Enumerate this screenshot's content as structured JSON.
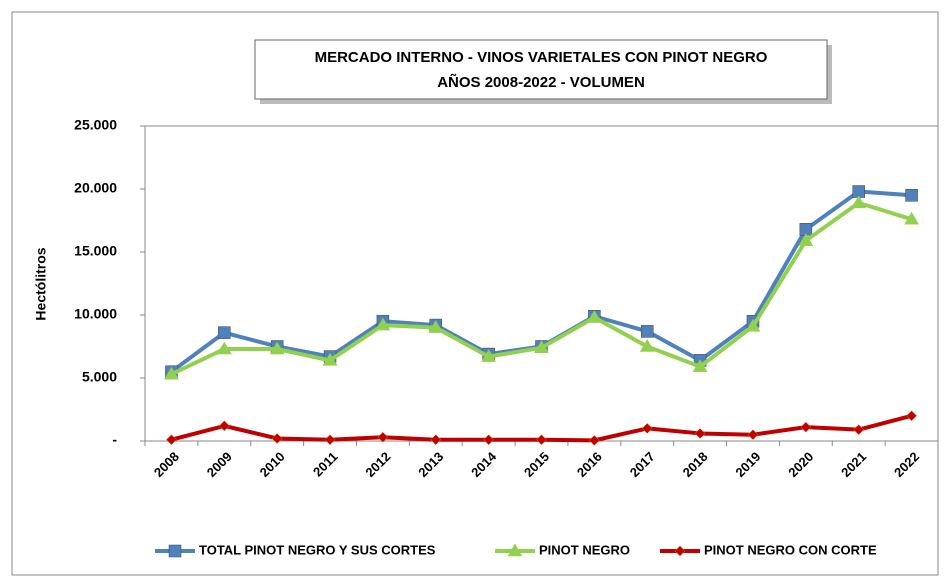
{
  "chart_data": {
    "type": "line",
    "title": "MERCADO INTERNO - VINOS VARIETALES CON PINOT NEGRO",
    "subtitle": "AÑOS 2008-2022 - VOLUMEN",
    "y_label": "Hectólitros",
    "categories": [
      "2008",
      "2009",
      "2010",
      "2011",
      "2012",
      "2013",
      "2014",
      "2015",
      "2016",
      "2017",
      "2018",
      "2019",
      "2020",
      "2021",
      "2022"
    ],
    "series": [
      {
        "name": "TOTAL PINOT NEGRO Y SUS CORTES",
        "color": "#4f81bd",
        "marker": "square",
        "values": [
          5500,
          8600,
          7500,
          6700,
          9500,
          9200,
          6900,
          7500,
          9900,
          8700,
          6400,
          9500,
          16800,
          19800,
          19500
        ]
      },
      {
        "name": "PINOT NEGRO",
        "color": "#92d050",
        "marker": "triangle",
        "values": [
          5300,
          7300,
          7300,
          6400,
          9200,
          9000,
          6700,
          7400,
          9800,
          7500,
          5900,
          9100,
          15900,
          18900,
          17600
        ]
      },
      {
        "name": "PINOT NEGRO  CON CORTE",
        "color": "#c00000",
        "marker": "diamond",
        "values": [
          100,
          1200,
          200,
          100,
          300,
          100,
          100,
          100,
          50,
          1000,
          600,
          500,
          1100,
          900,
          2000
        ]
      }
    ],
    "ylim": [
      0,
      25000
    ],
    "yticks": [
      {
        "value": 0,
        "label": "-"
      },
      {
        "value": 5000,
        "label": "5.000"
      },
      {
        "value": 10000,
        "label": "10.000"
      },
      {
        "value": 15000,
        "label": "15.000"
      },
      {
        "value": 20000,
        "label": "20.000"
      },
      {
        "value": 25000,
        "label": "25.000"
      }
    ],
    "grid": false,
    "legend": "bottom"
  }
}
